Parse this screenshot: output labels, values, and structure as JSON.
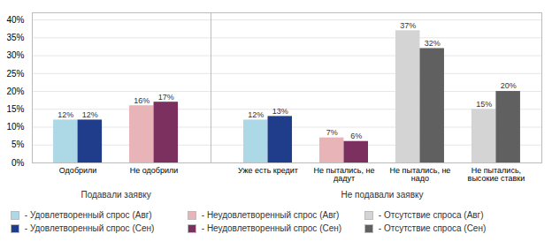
{
  "chart_data": {
    "type": "bar",
    "categories": [
      "Одобрили",
      "Не одобрили",
      "Уже есть кредит",
      "Не пытались, не\nдадут",
      "Не пытались, не\nнадо",
      "Не пытались,\nвысокие ставки"
    ],
    "series": [
      {
        "name": " - Удовлетворенный спрос (Авг)",
        "color": "#add8e6",
        "values": [
          12,
          null,
          12,
          null,
          null,
          null
        ],
        "value_labels": [
          "12%",
          null,
          "12%",
          null,
          null,
          null
        ]
      },
      {
        "name": " - Неудовлетворенный спрос (Авг)",
        "color": "#e8b4b8",
        "values": [
          null,
          16,
          null,
          7,
          null,
          null
        ],
        "value_labels": [
          null,
          "16%",
          null,
          "7%",
          null,
          null
        ]
      },
      {
        "name": " - Отсутствие спроса (Авг)",
        "color": "#d4d4d4",
        "values": [
          null,
          null,
          null,
          null,
          37,
          15
        ],
        "value_labels": [
          null,
          null,
          null,
          null,
          "37%",
          "15%"
        ]
      },
      {
        "name": " - Удовлетворенный спрос (Сен)",
        "color": "#1f3d8a",
        "values": [
          12,
          null,
          13,
          null,
          null,
          null
        ],
        "value_labels": [
          "12%",
          null,
          "13%",
          null,
          null,
          null
        ]
      },
      {
        "name": " - Неудовлетворенный спрос (Сен)",
        "color": "#7b3060",
        "values": [
          null,
          17,
          null,
          6,
          null,
          null
        ],
        "value_labels": [
          null,
          "17%",
          null,
          "6%",
          null,
          null
        ]
      },
      {
        "name": " - Отсутствие спроса (Сен)",
        "color": "#606060",
        "values": [
          null,
          null,
          null,
          null,
          32,
          20
        ],
        "value_labels": [
          null,
          null,
          null,
          null,
          "32%",
          "20%"
        ]
      }
    ],
    "ylim": [
      0,
      42
    ],
    "yticks": [
      {
        "value": 0,
        "label": "0%"
      },
      {
        "value": 5,
        "label": "5%"
      },
      {
        "value": 10,
        "label": "10%"
      },
      {
        "value": 15,
        "label": "15%"
      },
      {
        "value": 20,
        "label": "20%"
      },
      {
        "value": 25,
        "label": "25%"
      },
      {
        "value": 30,
        "label": "30%"
      },
      {
        "value": 35,
        "label": "35%"
      },
      {
        "value": 40,
        "label": "40%"
      }
    ],
    "grid": true,
    "data_labels": true,
    "annotations": [
      {
        "text": "Подавали заявку",
        "categories": [
          "Одобрили",
          "Не одобрили"
        ]
      },
      {
        "text": "Не подавали заявку",
        "categories": [
          "Уже есть кредит",
          "Не пытались, не\nдадут",
          "Не пытались, не\nнадо",
          "Не пытались,\nвысокие ставки"
        ]
      }
    ]
  }
}
